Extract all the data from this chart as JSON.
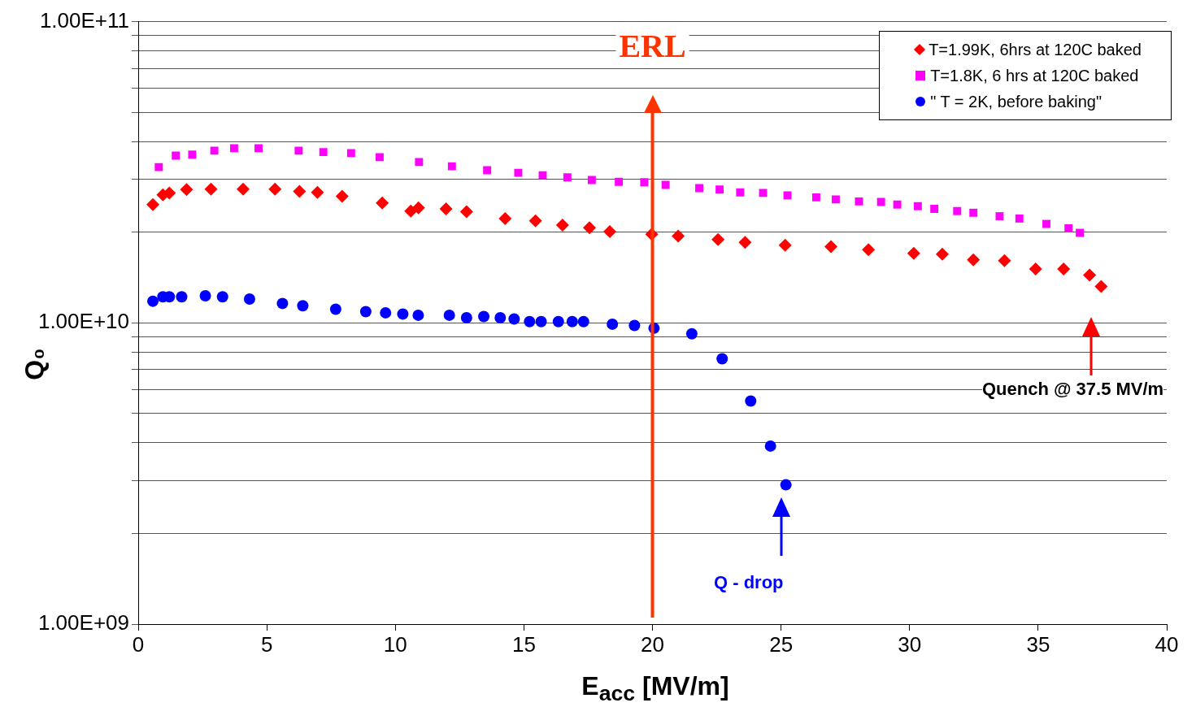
{
  "chart_data": {
    "type": "scatter",
    "xlabel": "E$_{acc}$ [MV/m]",
    "ylabel": "Q₀",
    "log": "y",
    "grid": "y",
    "legend": "top right",
    "xlim": [
      0,
      40
    ],
    "xticks": [
      0,
      5,
      10,
      15,
      20,
      25,
      30,
      35,
      40
    ],
    "ylim": [
      1000000000.0,
      100000000000.0
    ],
    "yticks": [
      {
        "value": 1000000000.0,
        "label": "1.00E+09"
      },
      {
        "value": 2000000000.0,
        "label": null
      },
      {
        "value": 3000000000.0,
        "label": null
      },
      {
        "value": 4000000000.0,
        "label": null
      },
      {
        "value": 5000000000.0,
        "label": null
      },
      {
        "value": 6000000000.0,
        "label": null
      },
      {
        "value": 7000000000.0,
        "label": null
      },
      {
        "value": 8000000000.0,
        "label": null
      },
      {
        "value": 9000000000.0,
        "label": null
      },
      {
        "value": 10000000000.0,
        "label": "1.00E+10"
      },
      {
        "value": 20000000000.0,
        "label": null
      },
      {
        "value": 30000000000.0,
        "label": null
      },
      {
        "value": 40000000000.0,
        "label": null
      },
      {
        "value": 50000000000.0,
        "label": null
      },
      {
        "value": 60000000000.0,
        "label": null
      },
      {
        "value": 70000000000.0,
        "label": null
      },
      {
        "value": 80000000000.0,
        "label": null
      },
      {
        "value": 90000000000.0,
        "label": null
      },
      {
        "value": 100000000000.0,
        "label": "1.00E+11"
      }
    ],
    "series": [
      {
        "name": "T=1.99K, 6hrs at 120C baked",
        "color": "#ff0000",
        "marker": "diamond",
        "x": [
          0.57,
          0.96,
          1.21,
          1.88,
          2.83,
          4.08,
          5.32,
          6.27,
          6.97,
          7.93,
          9.49,
          10.6,
          10.9,
          11.97,
          12.77,
          14.27,
          15.45,
          16.5,
          17.55,
          18.34,
          19.97,
          21.0,
          22.55,
          23.6,
          25.16,
          26.94,
          28.4,
          30.16,
          31.27,
          32.48,
          33.69,
          34.9,
          35.99,
          37.0,
          37.45
        ],
        "values": [
          24700000000.0,
          26600000000.0,
          27000000000.0,
          27700000000.0,
          27800000000.0,
          27800000000.0,
          27800000000.0,
          27300000000.0,
          27100000000.0,
          26300000000.0,
          25000000000.0,
          23500000000.0,
          24100000000.0,
          23900000000.0,
          23400000000.0,
          22200000000.0,
          21800000000.0,
          21100000000.0,
          20700000000.0,
          20100000000.0,
          19700000000.0,
          19400000000.0,
          18900000000.0,
          18500000000.0,
          18100000000.0,
          17900000000.0,
          17500000000.0,
          17000000000.0,
          16900000000.0,
          16200000000.0,
          16100000000.0,
          15100000000.0,
          15100000000.0,
          14400000000.0,
          13200000000.0
        ]
      },
      {
        "name": "T=1.8K, 6 hrs at 120C baked",
        "color": "#ff00ff",
        "marker": "square",
        "x": [
          0.8,
          1.46,
          2.1,
          2.96,
          3.73,
          4.68,
          6.24,
          7.2,
          8.28,
          9.39,
          10.92,
          12.2,
          13.57,
          14.78,
          15.73,
          16.69,
          17.64,
          18.69,
          19.68,
          20.51,
          21.82,
          22.61,
          23.41,
          24.3,
          25.25,
          26.37,
          27.13,
          28.03,
          28.89,
          29.52,
          30.32,
          30.96,
          31.85,
          32.48,
          33.5,
          34.27,
          35.32,
          36.18,
          36.62
        ],
        "values": [
          32900000000.0,
          35900000000.0,
          36200000000.0,
          37300000000.0,
          38000000000.0,
          38000000000.0,
          37300000000.0,
          36900000000.0,
          36600000000.0,
          35500000000.0,
          34200000000.0,
          33100000000.0,
          32100000000.0,
          31500000000.0,
          30900000000.0,
          30400000000.0,
          29800000000.0,
          29400000000.0,
          29300000000.0,
          28700000000.0,
          28000000000.0,
          27700000000.0,
          27100000000.0,
          27000000000.0,
          26500000000.0,
          26100000000.0,
          25700000000.0,
          25300000000.0,
          25200000000.0,
          24700000000.0,
          24400000000.0,
          23900000000.0,
          23500000000.0,
          23200000000.0,
          22600000000.0,
          22200000000.0,
          21300000000.0,
          20600000000.0,
          19900000000.0
        ]
      },
      {
        "name": "\" T = 2K, before baking\"",
        "color": "#0000ff",
        "marker": "circle",
        "x": [
          0.57,
          0.96,
          1.21,
          1.69,
          2.61,
          3.28,
          4.33,
          5.61,
          6.4,
          7.68,
          8.85,
          9.62,
          10.29,
          10.89,
          12.1,
          12.77,
          13.44,
          14.08,
          14.62,
          15.22,
          15.67,
          16.34,
          16.88,
          17.32,
          18.44,
          19.3,
          20.06,
          21.53,
          22.71,
          23.82,
          24.59,
          25.19
        ],
        "values": [
          11800000000.0,
          12200000000.0,
          12200000000.0,
          12200000000.0,
          12300000000.0,
          12200000000.0,
          12000000000.0,
          11600000000.0,
          11400000000.0,
          11100000000.0,
          10900000000.0,
          10800000000.0,
          10700000000.0,
          10600000000.0,
          10600000000.0,
          10400000000.0,
          10500000000.0,
          10400000000.0,
          10300000000.0,
          10100000000.0,
          10100000000.0,
          10100000000.0,
          10100000000.0,
          10100000000.0,
          9900000000.0,
          9800000000.0,
          9600000000.0,
          9200000000.0,
          7600000000.0,
          5500000000.0,
          3900000000.0,
          2900000000.0
        ]
      }
    ],
    "ref_lines": [
      {
        "axis": "x",
        "value": 20,
        "label": "ERL",
        "color": "#ff3300"
      }
    ],
    "annotations": [
      "Quench @ 37.5 MV/m",
      "Q - drop"
    ]
  }
}
